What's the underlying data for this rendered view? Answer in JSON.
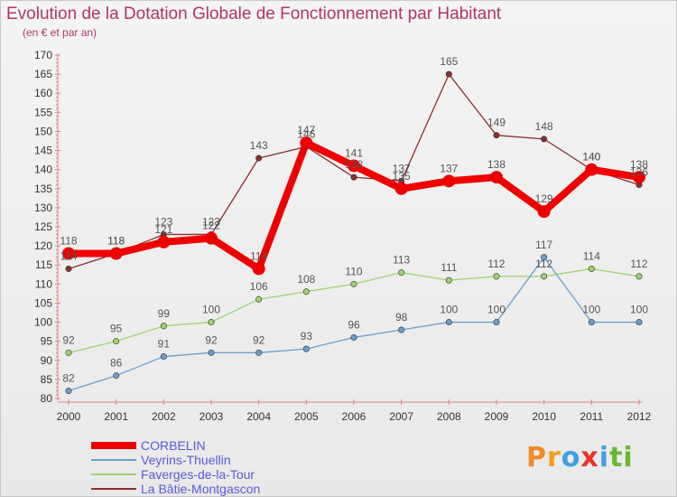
{
  "header": {
    "title": "Evolution de la Dotation Globale de Fonctionnement par Habitant",
    "subtitle": "(en € et par an)"
  },
  "logo": {
    "text": "Proxiti",
    "letters": [
      {
        "ch": "P",
        "color": "#f08a2a"
      },
      {
        "ch": "r",
        "color": "#f0a020"
      },
      {
        "ch": "o",
        "color": "#3fa0e0"
      },
      {
        "ch": "x",
        "color": "#e8322a"
      },
      {
        "ch": "i",
        "color": "#3fa0e0"
      },
      {
        "ch": "t",
        "color": "#6ab82e"
      },
      {
        "ch": "i",
        "color": "#6ab82e"
      }
    ]
  },
  "chart_data": {
    "type": "line",
    "title": "Evolution de la Dotation Globale de Fonctionnement par Habitant",
    "subtitle": "(en € et par an)",
    "xlabel": "",
    "ylabel": "",
    "x": [
      "2000",
      "2001",
      "2002",
      "2003",
      "2004",
      "2005",
      "2006",
      "2007",
      "2008",
      "2009",
      "2010",
      "2011",
      "2012"
    ],
    "ylim": [
      80,
      170
    ],
    "ytick_step": 5,
    "grid": false,
    "legend_position": "bottom-left",
    "series": [
      {
        "name": "CORBELIN",
        "color": "#ee0000",
        "emphasis": "thick",
        "values": [
          118,
          118,
          121,
          122,
          114,
          147,
          141,
          135,
          137,
          138,
          129,
          140,
          138
        ]
      },
      {
        "name": "Veyrins-Thuellin",
        "color": "#6a9fd0",
        "emphasis": "thin",
        "values": [
          82,
          86,
          91,
          92,
          92,
          93,
          96,
          98,
          100,
          100,
          117,
          100,
          100
        ]
      },
      {
        "name": "Faverges-de-la-Tour",
        "color": "#9ed46a",
        "emphasis": "thin",
        "values": [
          92,
          95,
          99,
          100,
          106,
          108,
          110,
          113,
          111,
          112,
          112,
          114,
          112
        ]
      },
      {
        "name": "La Bâtie-Montgascon",
        "color": "#8b2f2f",
        "emphasis": "thin",
        "values": [
          114,
          118,
          123,
          123,
          143,
          146,
          138,
          137,
          165,
          149,
          148,
          140,
          136
        ]
      }
    ]
  }
}
